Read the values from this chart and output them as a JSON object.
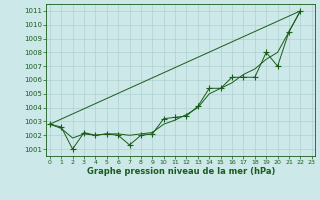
{
  "bg_color": "#cce8e8",
  "grid_color": "#b0d0d0",
  "line_color": "#1a5c1a",
  "xlabel": "Graphe pression niveau de la mer (hPa)",
  "ylim": [
    1000.5,
    1011.5
  ],
  "xlim": [
    -0.3,
    23.3
  ],
  "yticks": [
    1001,
    1002,
    1003,
    1004,
    1005,
    1006,
    1007,
    1008,
    1009,
    1010,
    1011
  ],
  "xticks": [
    0,
    1,
    2,
    3,
    4,
    5,
    6,
    7,
    8,
    9,
    10,
    11,
    12,
    13,
    14,
    15,
    16,
    17,
    18,
    19,
    20,
    21,
    22,
    23
  ],
  "series_zigzag": {
    "x": [
      0,
      1,
      2,
      3,
      4,
      5,
      6,
      7,
      8,
      9,
      10,
      11,
      12,
      13,
      14,
      15,
      16,
      17,
      18,
      19,
      20,
      21,
      22
    ],
    "y": [
      1002.8,
      1002.6,
      1001.0,
      1002.2,
      1002.0,
      1002.1,
      1002.0,
      1001.3,
      1002.0,
      1002.1,
      1003.2,
      1003.3,
      1003.4,
      1004.1,
      1005.4,
      1005.4,
      1006.2,
      1006.2,
      1006.2,
      1008.0,
      1007.0,
      1009.5,
      1011.0
    ]
  },
  "series_straight": {
    "x": [
      0,
      22
    ],
    "y": [
      1002.8,
      1011.0
    ]
  },
  "series_smooth": {
    "x": [
      0,
      1,
      2,
      3,
      4,
      5,
      6,
      7,
      8,
      9,
      10,
      11,
      12,
      13,
      14,
      15,
      16,
      17,
      18,
      19,
      20,
      21,
      22
    ],
    "y": [
      1002.8,
      1002.5,
      1001.8,
      1002.1,
      1002.0,
      1002.1,
      1002.1,
      1002.0,
      1002.1,
      1002.2,
      1002.8,
      1003.1,
      1003.5,
      1004.0,
      1005.0,
      1005.4,
      1005.8,
      1006.4,
      1006.8,
      1007.5,
      1008.0,
      1009.5,
      1011.0
    ]
  }
}
